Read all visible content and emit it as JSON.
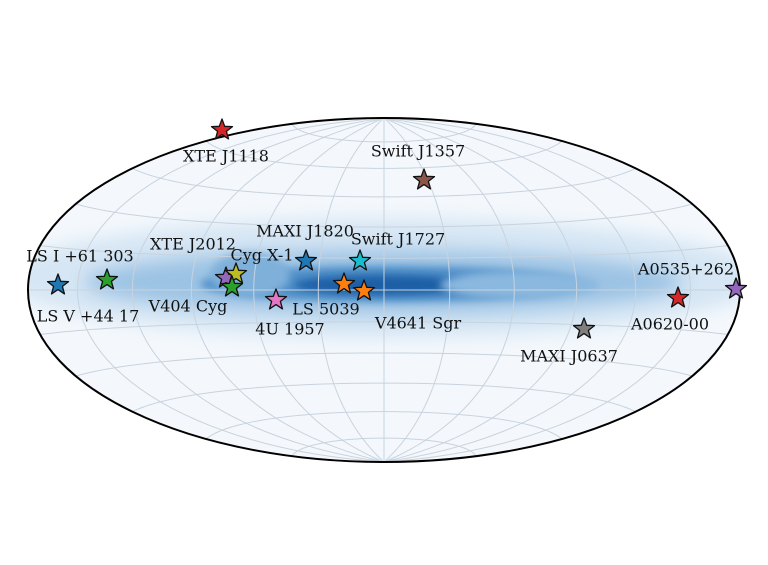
{
  "sources": [
    {
      "label": "XTE J1118",
      "color": "#d62728"
    },
    {
      "label": "Swift J1357",
      "color": "#8c564b"
    },
    {
      "label": "MAXI J1820",
      "color": "#1f77b4"
    },
    {
      "label": "Swift J1727",
      "color": "#17becf"
    },
    {
      "label": "XTE J2012",
      "color": "#9467bd"
    },
    {
      "label": "Cyg X-1",
      "color": "#bcbd22"
    },
    {
      "label": "V404 Cyg",
      "color": "#2ca02c"
    },
    {
      "label": "LS I +61 303",
      "color": "#2ca02c"
    },
    {
      "label": "LS V +44 17",
      "color": "#1f77b4"
    },
    {
      "label": "4U 1957",
      "color": "#e377c2"
    },
    {
      "label": "LS 5039",
      "color": "#ff7f0e"
    },
    {
      "label": "V4641 Sgr",
      "color": "#ff7f0e"
    },
    {
      "label": "MAXI J0637",
      "color": "#7f7f7f"
    },
    {
      "label": "A0535+262",
      "color": "#9467bd"
    },
    {
      "label": "A0620-00",
      "color": "#d62728"
    }
  ]
}
